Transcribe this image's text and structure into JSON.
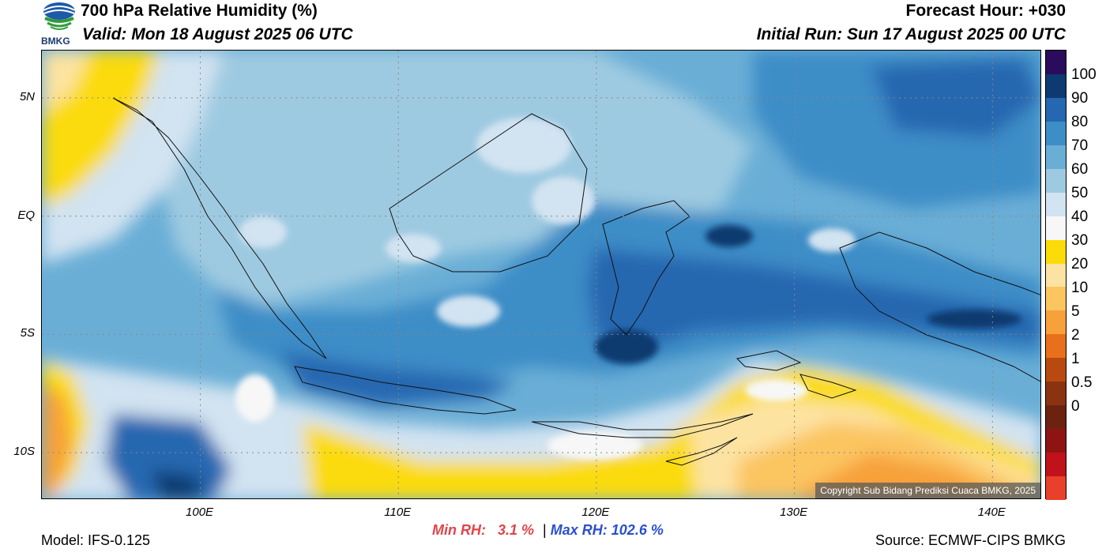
{
  "header": {
    "logo_text": "BMKG",
    "title": "700 hPa Relative Humidity (%)",
    "valid": "Valid: Mon 18 August 2025 06 UTC",
    "forecast_hour": "Forecast Hour: +030",
    "initial_run": "Initial Run: Sun 17 August 2025 00 UTC"
  },
  "map": {
    "lat_labels": [
      {
        "label": "5N",
        "lat": 5
      },
      {
        "label": "EQ",
        "lat": 0
      },
      {
        "label": "5S",
        "lat": -5
      },
      {
        "label": "10S",
        "lat": -10
      }
    ],
    "lon_labels": [
      {
        "label": "100E",
        "lon": 100
      },
      {
        "label": "110E",
        "lon": 110
      },
      {
        "label": "120E",
        "lon": 120
      },
      {
        "label": "130E",
        "lon": 130
      },
      {
        "label": "140E",
        "lon": 140
      }
    ],
    "lon_range": [
      92,
      142.5
    ],
    "lat_range": [
      -12,
      7
    ],
    "copyright": "Copyright Sub Bidang Prediksi Cuaca BMKG, 2025"
  },
  "colorbar": {
    "levels": [
      "100",
      "90",
      "80",
      "70",
      "60",
      "50",
      "40",
      "30",
      "20",
      "10",
      "5",
      "2",
      "1",
      "0.5",
      "0"
    ],
    "colors": [
      "#e8402a",
      "#c0121b",
      "#8e1414",
      "#6b2310",
      "#8a3311",
      "#b84a10",
      "#e8701c",
      "#f7a13a",
      "#fbc560",
      "#fde3a2",
      "#fbdb08",
      "#f7f7f7",
      "#d2e3f1",
      "#9ecae1",
      "#6aaed6",
      "#3d8dc7",
      "#2567b0",
      "#0d3a70",
      "#2b0c5c"
    ]
  },
  "stats": {
    "min_label": "Min RH:",
    "min_value": "3.1 %",
    "separator": "|",
    "max_label": "Max RH:",
    "max_value": "102.6 %"
  },
  "footer": {
    "model": "Model: IFS-0.125",
    "source": "Source: ECMWF-CIPS BMKG"
  }
}
